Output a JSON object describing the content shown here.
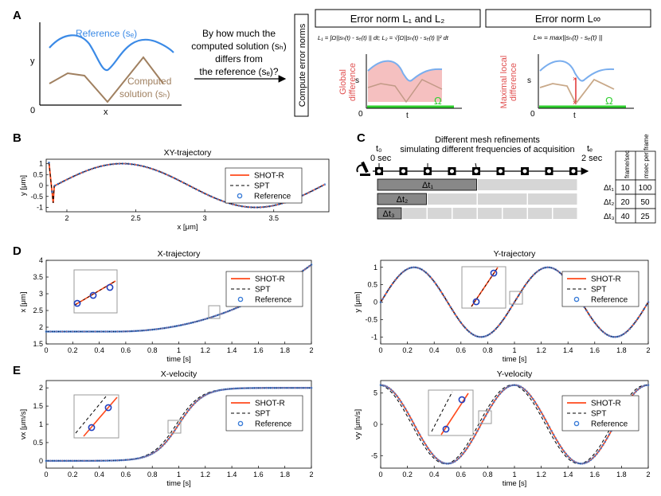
{
  "panel_labels": {
    "a": "A",
    "b": "B",
    "c": "C",
    "d": "D",
    "e": "E"
  },
  "panelA": {
    "ref_label": "Reference (sₑ)",
    "comp_label_1": "Computed",
    "comp_label_2": "solution (sₕ)",
    "axis_y": "y",
    "axis_x": "x",
    "origin": "0",
    "question": [
      "By how much the",
      "computed solution (sₕ)",
      "differs from",
      "the reference (sₑ)?"
    ],
    "vertical_box": "Compute error norms",
    "norm12_title": "Error norm L₁ and L₂",
    "norminf_title": "Error norm L∞",
    "formula12": "L₁ = ∫Ω||sₕ(t) - sₑ(t) || dt;   L₂ = √∫Ω||sₕ(t) - sₑ(t) ||² dt",
    "formulainf": "L∞ = max||sₕ(t) - sₑ(t) ||",
    "global_diff": [
      "Global",
      "difference"
    ],
    "maximal_diff": [
      "Maximal local",
      "difference"
    ],
    "omega": "Ω",
    "s": "s",
    "t": "t",
    "zero": "0"
  },
  "panelC": {
    "title_1": "Different mesh refinements",
    "title_2": "simulating different frequencies of acquisition",
    "t0": "t₀",
    "t0_val": "0 sec",
    "tf": "tₑ",
    "tf_val": "2 sec",
    "dt_labels": [
      "Δt₁",
      "Δt₂",
      "Δt₃"
    ],
    "table_headers": [
      "frame/sec",
      "msec per frame"
    ],
    "table_rows": [
      {
        "label": "Δt₁",
        "fps": "10",
        "ms": "100"
      },
      {
        "label": "Δt₂",
        "fps": "20",
        "ms": "50"
      },
      {
        "label": "Δt₃",
        "fps": "40",
        "ms": "25"
      }
    ]
  },
  "legend": {
    "shot": "SHOT-R",
    "spt": "SPT",
    "ref": "Reference"
  },
  "colors": {
    "shot": "#ff4a1c",
    "spt": "#000000",
    "ref": "#3b7dd8",
    "blue_curve": "#6fa8ee",
    "brown": "#a08060",
    "pink": "#f5b5b5",
    "green": "#2fcf2f",
    "red": "#e03030"
  },
  "chart_data": [
    {
      "id": "xy",
      "type": "line",
      "title": "XY-trajectory",
      "xlabel": "x [μm]",
      "ylabel": "y [μm]",
      "xlim": [
        1.85,
        3.9
      ],
      "ylim": [
        -1.2,
        1.2
      ],
      "xticks": [
        2,
        2.5,
        3,
        3.5
      ],
      "yticks": [
        -1,
        -0.5,
        0,
        0.5,
        1
      ],
      "series": [
        "SHOT-R",
        "SPT",
        "Reference"
      ]
    },
    {
      "id": "xt",
      "type": "line",
      "title": "X-trajectory",
      "xlabel": "time [s]",
      "ylabel": "x [μm]",
      "xlim": [
        0,
        2
      ],
      "ylim": [
        1.5,
        4
      ],
      "xticks": [
        0,
        0.2,
        0.4,
        0.6,
        0.8,
        1,
        1.2,
        1.4,
        1.6,
        1.8,
        2
      ],
      "yticks": [
        1.5,
        2,
        2.5,
        3,
        3.5,
        4
      ],
      "series": [
        "SHOT-R",
        "SPT",
        "Reference"
      ]
    },
    {
      "id": "yt",
      "type": "line",
      "title": "Y-trajectory",
      "xlabel": "time [s]",
      "ylabel": "y [μm]",
      "xlim": [
        0,
        2
      ],
      "ylim": [
        -1.2,
        1.2
      ],
      "xticks": [
        0,
        0.2,
        0.4,
        0.6,
        0.8,
        1,
        1.2,
        1.4,
        1.6,
        1.8,
        2
      ],
      "yticks": [
        -1,
        -0.5,
        0,
        0.5,
        1
      ],
      "series": [
        "SHOT-R",
        "SPT",
        "Reference"
      ]
    },
    {
      "id": "vx",
      "type": "line",
      "title": "X-velocity",
      "xlabel": "time [s]",
      "ylabel": "vx [μm/s]",
      "xlim": [
        0,
        2
      ],
      "ylim": [
        -0.2,
        2.2
      ],
      "xticks": [
        0,
        0.2,
        0.4,
        0.6,
        0.8,
        1,
        1.2,
        1.4,
        1.6,
        1.8,
        2
      ],
      "yticks": [
        0,
        0.5,
        1,
        1.5,
        2
      ],
      "series": [
        "SHOT-R",
        "SPT",
        "Reference"
      ]
    },
    {
      "id": "vy",
      "type": "line",
      "title": "Y-velocity",
      "xlabel": "time [s]",
      "ylabel": "vy [μm/s]",
      "xlim": [
        0,
        2
      ],
      "ylim": [
        -7,
        7
      ],
      "xticks": [
        0,
        0.2,
        0.4,
        0.6,
        0.8,
        1,
        1.2,
        1.4,
        1.6,
        1.8,
        2
      ],
      "yticks": [
        -5,
        0,
        5
      ],
      "series": [
        "SHOT-R",
        "SPT",
        "Reference"
      ]
    }
  ]
}
